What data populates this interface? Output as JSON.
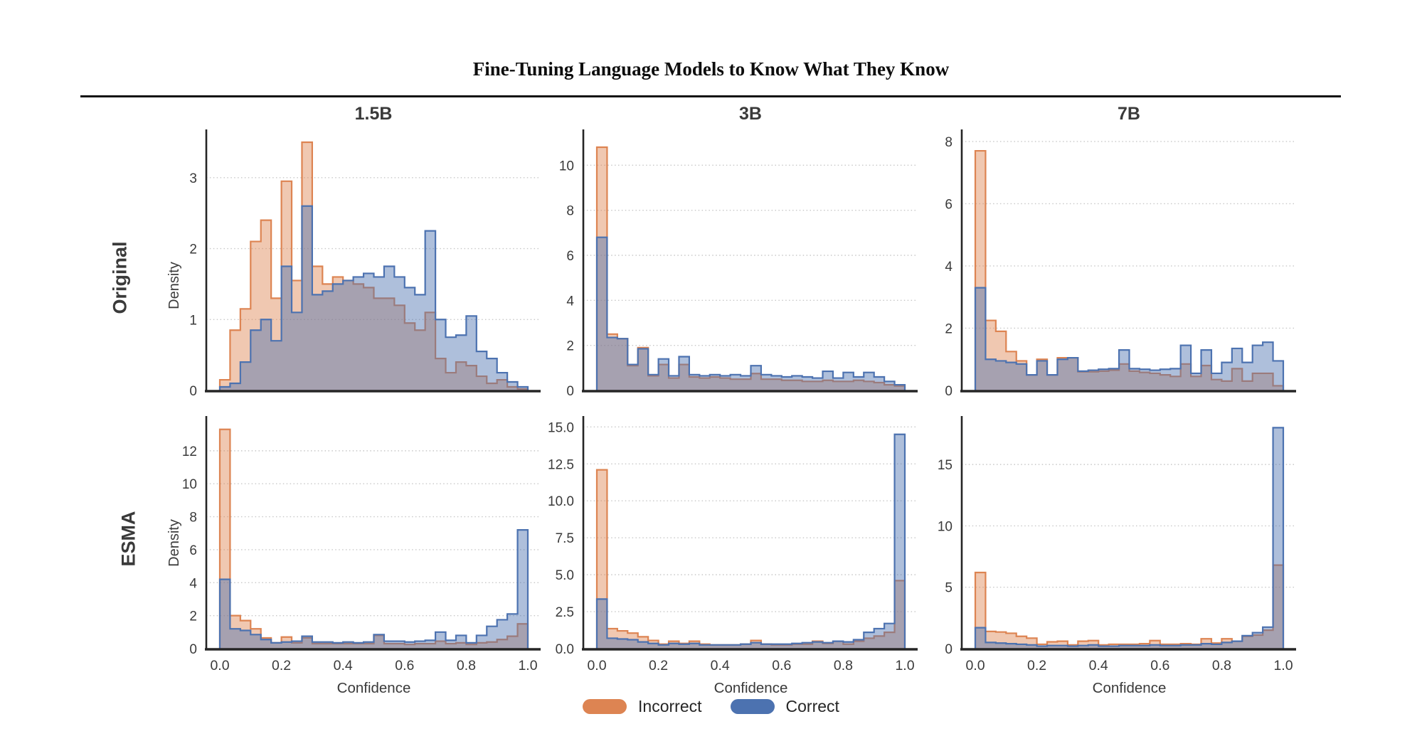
{
  "title": "Fine-Tuning Language Models to Know What They Know",
  "columns": [
    "1.5B",
    "3B",
    "7B"
  ],
  "rows": [
    "Original",
    "ESMA"
  ],
  "axis": {
    "ylabel": "Density",
    "xlabel": "Confidence"
  },
  "legend": [
    {
      "label": "Incorrect",
      "color": "#DD8452"
    },
    {
      "label": "Correct",
      "color": "#4C72B0"
    }
  ],
  "colors": {
    "incorrect_stroke": "#DD8452",
    "incorrect_fill": "rgba(221,132,82,0.45)",
    "correct_stroke": "#4C72B0",
    "correct_fill": "rgba(76,114,176,0.45)",
    "grid": "#c8c8c8",
    "spine": "#262626",
    "tick_text": "#3a3a3a"
  },
  "chart_data": [
    {
      "type": "histogram-step",
      "row": "Original",
      "model": "1.5B",
      "xlabel": "Confidence",
      "ylabel": "Density",
      "x_range": [
        0.0,
        1.0
      ],
      "n_bins": 30,
      "grid": "dotted-horizontal",
      "ylim": [
        0,
        3.62
      ],
      "yticks": [
        {
          "v": 0,
          "label": "0"
        },
        {
          "v": 1,
          "label": "1"
        },
        {
          "v": 2,
          "label": "2"
        },
        {
          "v": 3,
          "label": "3"
        }
      ],
      "xticks": [],
      "series": [
        {
          "name": "Incorrect",
          "values": [
            0.15,
            0.85,
            1.15,
            2.1,
            2.4,
            1.3,
            2.95,
            1.55,
            3.5,
            1.75,
            1.5,
            1.6,
            1.55,
            1.5,
            1.45,
            1.3,
            1.3,
            1.2,
            0.95,
            0.85,
            1.1,
            0.45,
            0.25,
            0.4,
            0.35,
            0.2,
            0.1,
            0.15,
            0.05,
            0.02
          ]
        },
        {
          "name": "Correct",
          "values": [
            0.05,
            0.1,
            0.4,
            0.85,
            1.0,
            0.7,
            1.75,
            1.1,
            2.6,
            1.35,
            1.4,
            1.5,
            1.55,
            1.6,
            1.65,
            1.6,
            1.75,
            1.6,
            1.45,
            1.35,
            2.25,
            1.0,
            0.75,
            0.78,
            1.05,
            0.55,
            0.45,
            0.25,
            0.12,
            0.05
          ]
        }
      ]
    },
    {
      "type": "histogram-step",
      "row": "Original",
      "model": "3B",
      "xlabel": "Confidence",
      "ylabel": "Density",
      "x_range": [
        0.0,
        1.0
      ],
      "n_bins": 30,
      "grid": "dotted-horizontal",
      "ylim": [
        0,
        11.4
      ],
      "yticks": [
        {
          "v": 0,
          "label": "0"
        },
        {
          "v": 2,
          "label": "2"
        },
        {
          "v": 4,
          "label": "4"
        },
        {
          "v": 6,
          "label": "6"
        },
        {
          "v": 8,
          "label": "8"
        },
        {
          "v": 10,
          "label": "10"
        }
      ],
      "xticks": [],
      "series": [
        {
          "name": "Incorrect",
          "values": [
            10.8,
            2.5,
            2.3,
            1.1,
            1.9,
            0.65,
            1.15,
            0.55,
            1.15,
            0.6,
            0.55,
            0.6,
            0.55,
            0.5,
            0.5,
            0.75,
            0.5,
            0.5,
            0.45,
            0.45,
            0.4,
            0.4,
            0.45,
            0.4,
            0.4,
            0.45,
            0.4,
            0.35,
            0.25,
            0.2
          ]
        },
        {
          "name": "Correct",
          "values": [
            6.8,
            2.35,
            2.3,
            1.15,
            1.85,
            0.7,
            1.4,
            0.65,
            1.5,
            0.7,
            0.65,
            0.7,
            0.65,
            0.7,
            0.65,
            1.1,
            0.7,
            0.65,
            0.6,
            0.65,
            0.6,
            0.55,
            0.85,
            0.55,
            0.8,
            0.6,
            0.8,
            0.6,
            0.4,
            0.25
          ]
        }
      ]
    },
    {
      "type": "histogram-step",
      "row": "Original",
      "model": "7B",
      "xlabel": "Confidence",
      "ylabel": "Density",
      "x_range": [
        0.0,
        1.0
      ],
      "n_bins": 30,
      "grid": "dotted-horizontal",
      "ylim": [
        0,
        8.25
      ],
      "yticks": [
        {
          "v": 0,
          "label": "0"
        },
        {
          "v": 2,
          "label": "2"
        },
        {
          "v": 4,
          "label": "4"
        },
        {
          "v": 6,
          "label": "6"
        },
        {
          "v": 8,
          "label": "8"
        }
      ],
      "xticks": [],
      "series": [
        {
          "name": "Incorrect",
          "values": [
            7.7,
            2.25,
            1.9,
            1.25,
            0.95,
            0.5,
            1.0,
            0.5,
            1.05,
            1.05,
            0.6,
            0.6,
            0.62,
            0.65,
            0.85,
            0.62,
            0.58,
            0.55,
            0.5,
            0.45,
            0.85,
            0.45,
            0.8,
            0.35,
            0.3,
            0.7,
            0.3,
            0.55,
            0.55,
            0.15
          ]
        },
        {
          "name": "Correct",
          "values": [
            3.3,
            1.0,
            0.95,
            0.9,
            0.85,
            0.5,
            0.95,
            0.5,
            1.0,
            1.05,
            0.62,
            0.65,
            0.68,
            0.7,
            1.3,
            0.7,
            0.68,
            0.65,
            0.68,
            0.7,
            1.45,
            0.55,
            1.3,
            0.55,
            0.9,
            1.35,
            0.9,
            1.45,
            1.55,
            0.95
          ]
        }
      ]
    },
    {
      "type": "histogram-step",
      "row": "ESMA",
      "model": "1.5B",
      "xlabel": "Confidence",
      "ylabel": "Density",
      "x_range": [
        0.0,
        1.0
      ],
      "n_bins": 30,
      "grid": "dotted-horizontal",
      "ylim": [
        0,
        13.85
      ],
      "yticks": [
        {
          "v": 0,
          "label": "0"
        },
        {
          "v": 2,
          "label": "2"
        },
        {
          "v": 4,
          "label": "4"
        },
        {
          "v": 6,
          "label": "6"
        },
        {
          "v": 8,
          "label": "8"
        },
        {
          "v": 10,
          "label": "10"
        },
        {
          "v": 12,
          "label": "12"
        }
      ],
      "xticks": [
        {
          "v": 0.0,
          "label": "0.0"
        },
        {
          "v": 0.2,
          "label": "0.2"
        },
        {
          "v": 0.4,
          "label": "0.4"
        },
        {
          "v": 0.6,
          "label": "0.6"
        },
        {
          "v": 0.8,
          "label": "0.8"
        },
        {
          "v": 1.0,
          "label": "1.0"
        }
      ],
      "series": [
        {
          "name": "Incorrect",
          "values": [
            13.3,
            2.0,
            1.7,
            1.2,
            0.65,
            0.35,
            0.7,
            0.35,
            0.65,
            0.3,
            0.3,
            0.3,
            0.3,
            0.3,
            0.3,
            0.8,
            0.3,
            0.3,
            0.25,
            0.3,
            0.3,
            0.45,
            0.3,
            0.35,
            0.25,
            0.35,
            0.4,
            0.55,
            0.75,
            1.5
          ]
        },
        {
          "name": "Correct",
          "values": [
            4.2,
            1.2,
            1.1,
            0.85,
            0.55,
            0.35,
            0.4,
            0.45,
            0.75,
            0.4,
            0.4,
            0.35,
            0.4,
            0.35,
            0.4,
            0.85,
            0.45,
            0.45,
            0.4,
            0.45,
            0.5,
            1.0,
            0.5,
            0.8,
            0.35,
            0.8,
            1.35,
            1.75,
            2.1,
            7.2
          ]
        }
      ]
    },
    {
      "type": "histogram-step",
      "row": "ESMA",
      "model": "3B",
      "xlabel": "Confidence",
      "ylabel": "Density",
      "x_range": [
        0.0,
        1.0
      ],
      "n_bins": 30,
      "grid": "dotted-horizontal",
      "ylim": [
        0,
        15.45
      ],
      "yticks": [
        {
          "v": 0,
          "label": "0.0"
        },
        {
          "v": 2.5,
          "label": "2.5"
        },
        {
          "v": 5,
          "label": "5.0"
        },
        {
          "v": 7.5,
          "label": "7.5"
        },
        {
          "v": 10,
          "label": "10.0"
        },
        {
          "v": 12.5,
          "label": "12.5"
        },
        {
          "v": 15,
          "label": "15.0"
        }
      ],
      "xticks": [
        {
          "v": 0.0,
          "label": "0.0"
        },
        {
          "v": 0.2,
          "label": "0.2"
        },
        {
          "v": 0.4,
          "label": "0.4"
        },
        {
          "v": 0.6,
          "label": "0.6"
        },
        {
          "v": 0.8,
          "label": "0.8"
        },
        {
          "v": 1.0,
          "label": "1.0"
        }
      ],
      "series": [
        {
          "name": "Incorrect",
          "values": [
            12.1,
            1.35,
            1.2,
            1.05,
            0.8,
            0.55,
            0.3,
            0.5,
            0.35,
            0.5,
            0.3,
            0.25,
            0.25,
            0.25,
            0.3,
            0.55,
            0.3,
            0.25,
            0.25,
            0.3,
            0.3,
            0.5,
            0.35,
            0.5,
            0.3,
            0.5,
            0.7,
            0.85,
            1.1,
            4.6
          ]
        },
        {
          "name": "Correct",
          "values": [
            3.35,
            0.7,
            0.65,
            0.6,
            0.45,
            0.35,
            0.25,
            0.35,
            0.3,
            0.35,
            0.25,
            0.25,
            0.25,
            0.25,
            0.3,
            0.4,
            0.3,
            0.3,
            0.3,
            0.35,
            0.4,
            0.45,
            0.4,
            0.5,
            0.45,
            0.6,
            1.1,
            1.35,
            1.7,
            14.5
          ]
        }
      ]
    },
    {
      "type": "histogram-step",
      "row": "ESMA",
      "model": "7B",
      "xlabel": "Confidence",
      "ylabel": "Density",
      "x_range": [
        0.0,
        1.0
      ],
      "n_bins": 30,
      "grid": "dotted-horizontal",
      "ylim": [
        0,
        18.6
      ],
      "yticks": [
        {
          "v": 0,
          "label": "0"
        },
        {
          "v": 5,
          "label": "5"
        },
        {
          "v": 10,
          "label": "10"
        },
        {
          "v": 15,
          "label": "15"
        }
      ],
      "xticks": [
        {
          "v": 0.0,
          "label": "0.0"
        },
        {
          "v": 0.2,
          "label": "0.2"
        },
        {
          "v": 0.4,
          "label": "0.4"
        },
        {
          "v": 0.6,
          "label": "0.6"
        },
        {
          "v": 0.8,
          "label": "0.8"
        },
        {
          "v": 1.0,
          "label": "1.0"
        }
      ],
      "series": [
        {
          "name": "Incorrect",
          "values": [
            6.2,
            1.4,
            1.35,
            1.25,
            1.0,
            0.85,
            0.35,
            0.55,
            0.6,
            0.3,
            0.6,
            0.65,
            0.3,
            0.35,
            0.35,
            0.35,
            0.4,
            0.65,
            0.35,
            0.35,
            0.4,
            0.35,
            0.8,
            0.45,
            0.8,
            0.6,
            1.0,
            1.1,
            1.5,
            6.8
          ]
        },
        {
          "name": "Correct",
          "values": [
            1.7,
            0.5,
            0.45,
            0.4,
            0.35,
            0.3,
            0.2,
            0.25,
            0.25,
            0.2,
            0.25,
            0.3,
            0.2,
            0.2,
            0.25,
            0.25,
            0.25,
            0.3,
            0.25,
            0.25,
            0.3,
            0.3,
            0.4,
            0.35,
            0.5,
            0.6,
            1.05,
            1.3,
            1.75,
            18.0
          ]
        }
      ]
    }
  ]
}
